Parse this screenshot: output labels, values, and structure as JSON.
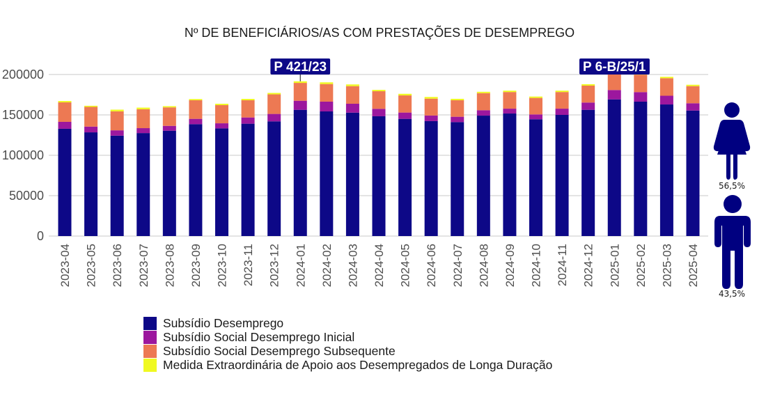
{
  "chart_data": {
    "type": "bar",
    "stacked": true,
    "title": "Nº DE BENEFICIÁRIOS/AS COM PRESTAÇÕES DE DESEMPREGO",
    "xlabel": "",
    "ylabel": "",
    "ylim": [
      0,
      200000
    ],
    "yticks": [
      0,
      50000,
      100000,
      150000,
      200000
    ],
    "ytick_labels": [
      "0",
      "50000",
      "100000",
      "150000",
      "200000"
    ],
    "grid": true,
    "legend_position": "bottom-left",
    "categories": [
      "2023-04",
      "2023-05",
      "2023-06",
      "2023-07",
      "2023-08",
      "2023-09",
      "2023-10",
      "2023-11",
      "2023-12",
      "2024-01",
      "2024-02",
      "2024-03",
      "2024-04",
      "2024-05",
      "2024-06",
      "2024-07",
      "2024-08",
      "2024-09",
      "2024-10",
      "2024-11",
      "2024-12",
      "2025-01",
      "2025-02",
      "2025-03",
      "2025-04"
    ],
    "series": [
      {
        "name": "Subsídio Desemprego",
        "color": "#0d0887",
        "values": [
          132800,
          128400,
          124300,
          127500,
          130400,
          138500,
          133300,
          139100,
          142000,
          156300,
          154300,
          152800,
          148300,
          145100,
          142300,
          141100,
          149100,
          151700,
          144600,
          150000,
          156300,
          169200,
          166400,
          162900,
          155400
        ]
      },
      {
        "name": "Subsídio Social Desemprego Inicial",
        "color": "#9c179e",
        "values": [
          8600,
          7100,
          6600,
          6100,
          6000,
          6600,
          6300,
          7700,
          9200,
          11200,
          12100,
          11000,
          9200,
          7800,
          6900,
          6600,
          6700,
          6000,
          6000,
          7700,
          9000,
          11600,
          11800,
          10800,
          9000
        ]
      },
      {
        "name": "Subsídio Social Desemprego Subsequente",
        "color": "#ed7953",
        "values": [
          24100,
          24400,
          23500,
          23400,
          22900,
          23000,
          22500,
          21300,
          24200,
          22100,
          21800,
          21800,
          21800,
          21200,
          20900,
          20400,
          21100,
          20600,
          20400,
          20600,
          20900,
          20900,
          21600,
          21700,
          21200
        ]
      },
      {
        "name": "Medida Extraordinária de Apoio aos Desempregados de Longa Duração",
        "color": "#f0f921",
        "values": [
          1700,
          1400,
          2100,
          2000,
          1500,
          1500,
          1700,
          1700,
          1800,
          2000,
          2100,
          2100,
          1700,
          2000,
          2100,
          1800,
          1700,
          1700,
          1700,
          1700,
          1800,
          1500,
          1700,
          1700,
          1700
        ]
      }
    ],
    "annotations": [
      {
        "label": "P 421/23",
        "category": "2024-01"
      },
      {
        "label": "P 6-B/25/1",
        "category": "2025-01"
      }
    ],
    "gender_split": [
      {
        "name": "female",
        "icon": "female-figure-icon",
        "label": "56,5%"
      },
      {
        "name": "male",
        "icon": "male-figure-icon",
        "label": "43,5%"
      }
    ],
    "annotation_color": "#0d0887",
    "icon_color": "#000080"
  }
}
